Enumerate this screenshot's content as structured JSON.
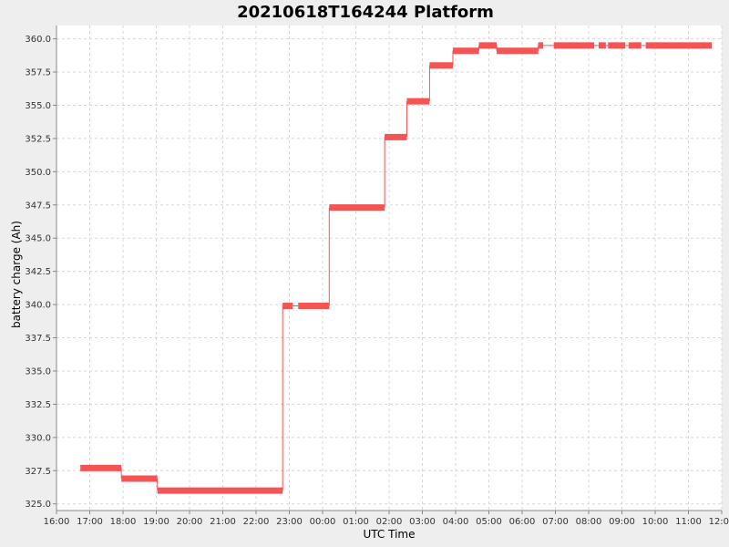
{
  "chart_data": {
    "type": "line",
    "title": "20210618T164244 Platform",
    "xlabel": "UTC Time",
    "ylabel": "battery charge (Ah)",
    "x_tick_labels": [
      "16:00",
      "17:00",
      "18:00",
      "19:00",
      "20:00",
      "21:00",
      "22:00",
      "23:00",
      "00:00",
      "01:00",
      "02:00",
      "03:00",
      "04:00",
      "05:00",
      "06:00",
      "07:00",
      "08:00",
      "09:00",
      "10:00",
      "11:00",
      "12:00"
    ],
    "y_tick_labels": [
      "325.0",
      "327.5",
      "330.0",
      "332.5",
      "335.0",
      "337.5",
      "340.0",
      "342.5",
      "345.0",
      "347.5",
      "350.0",
      "352.5",
      "355.0",
      "357.5",
      "360.0"
    ],
    "x_range": [
      "2021-06-18T16:00",
      "2021-06-19T12:00"
    ],
    "ylim": [
      324.5,
      361.0
    ],
    "grid": true,
    "line_color": "#f55454",
    "series": [
      {
        "segments": [
          {
            "x0": "2021-06-18T16:43",
            "x1": "2021-06-18T17:57",
            "y": 327.7
          },
          {
            "x0": "2021-06-18T17:57",
            "x1": "2021-06-18T19:02",
            "y": 326.9
          },
          {
            "x0": "2021-06-18T19:02",
            "x1": "2021-06-18T22:48",
            "y": 326.0
          },
          {
            "x0": "2021-06-18T22:48",
            "x1": "2021-06-18T23:06",
            "y": 339.9
          },
          {
            "x0": "2021-06-18T23:16",
            "x1": "2021-06-19T00:12",
            "y": 339.9
          },
          {
            "x0": "2021-06-19T00:12",
            "x1": "2021-06-19T01:52",
            "y": 347.3
          },
          {
            "x0": "2021-06-19T01:52",
            "x1": "2021-06-19T02:32",
            "y": 352.6
          },
          {
            "x0": "2021-06-19T02:32",
            "x1": "2021-06-19T03:13",
            "y": 355.3
          },
          {
            "x0": "2021-06-19T03:13",
            "x1": "2021-06-19T03:55",
            "y": 358.0
          },
          {
            "x0": "2021-06-19T03:55",
            "x1": "2021-06-19T04:42",
            "y": 359.1
          },
          {
            "x0": "2021-06-19T04:42",
            "x1": "2021-06-19T05:14",
            "y": 359.5
          },
          {
            "x0": "2021-06-19T05:14",
            "x1": "2021-06-19T06:29",
            "y": 359.1
          },
          {
            "x0": "2021-06-19T06:29",
            "x1": "2021-06-19T06:38",
            "y": 359.5
          },
          {
            "x0": "2021-06-19T06:57",
            "x1": "2021-06-19T08:10",
            "y": 359.5
          },
          {
            "x0": "2021-06-19T08:18",
            "x1": "2021-06-19T08:31",
            "y": 359.5
          },
          {
            "x0": "2021-06-19T08:35",
            "x1": "2021-06-19T09:06",
            "y": 359.5
          },
          {
            "x0": "2021-06-19T09:12",
            "x1": "2021-06-19T09:35",
            "y": 359.5
          },
          {
            "x0": "2021-06-19T09:43",
            "x1": "2021-06-19T11:42",
            "y": 359.5
          }
        ]
      }
    ]
  }
}
